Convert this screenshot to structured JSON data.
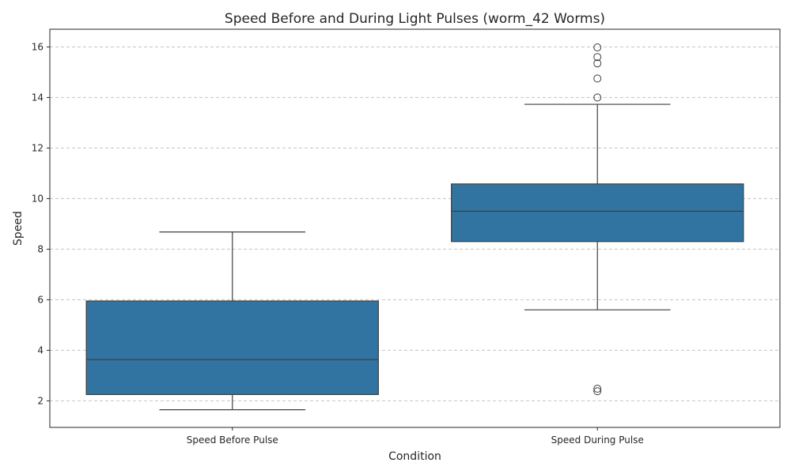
{
  "chart_data": {
    "type": "boxplot",
    "title": "Speed Before and During Light Pulses (worm_42 Worms)",
    "xlabel": "Condition",
    "ylabel": "Speed",
    "ylim": [
      0.95,
      16.7
    ],
    "yticks": [
      2,
      4,
      6,
      8,
      10,
      12,
      14,
      16
    ],
    "grid": "y-dashed",
    "box_color": "#3274a1",
    "categories": [
      "Speed Before Pulse",
      "Speed During Pulse"
    ],
    "boxes": [
      {
        "category": "Speed Before Pulse",
        "whisker_low": 1.65,
        "q1": 2.25,
        "median": 3.63,
        "q3": 5.95,
        "whisker_high": 8.68,
        "outliers": []
      },
      {
        "category": "Speed During Pulse",
        "whisker_low": 5.6,
        "q1": 8.3,
        "median": 9.5,
        "q3": 10.58,
        "whisker_high": 13.73,
        "outliers": [
          15.98,
          15.6,
          15.35,
          14.75,
          14.0,
          2.48,
          2.38
        ]
      }
    ]
  }
}
